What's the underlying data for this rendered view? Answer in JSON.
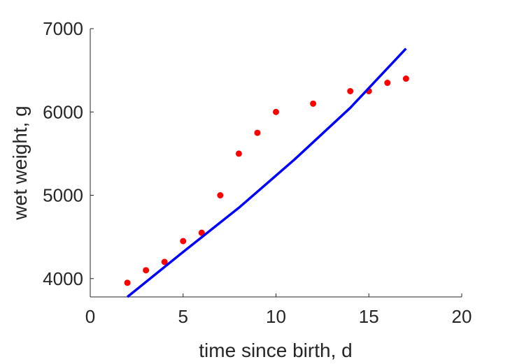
{
  "chart_data": {
    "type": "scatter",
    "xlabel": "time since birth, d",
    "ylabel": "wet weight, g",
    "xlim": [
      0,
      20
    ],
    "ylim": [
      3780,
      7000
    ],
    "x_ticks": [
      0,
      5,
      10,
      15,
      20
    ],
    "y_ticks": [
      4000,
      5000,
      6000,
      7000
    ],
    "grid": false,
    "series": [
      {
        "kind": "points",
        "color": "#ff0000",
        "x": [
          2,
          3,
          4,
          5,
          6,
          7,
          8,
          9,
          10,
          12,
          14,
          15,
          16,
          17
        ],
        "y": [
          3950,
          4100,
          4200,
          4450,
          4550,
          5000,
          5500,
          5750,
          6000,
          6100,
          6250,
          6250,
          6350,
          6400
        ]
      },
      {
        "kind": "line",
        "color": "#0000ff",
        "x": [
          2,
          5,
          8,
          11,
          14,
          17
        ],
        "y": [
          3780,
          4320,
          4850,
          5430,
          6050,
          6760
        ]
      }
    ]
  }
}
